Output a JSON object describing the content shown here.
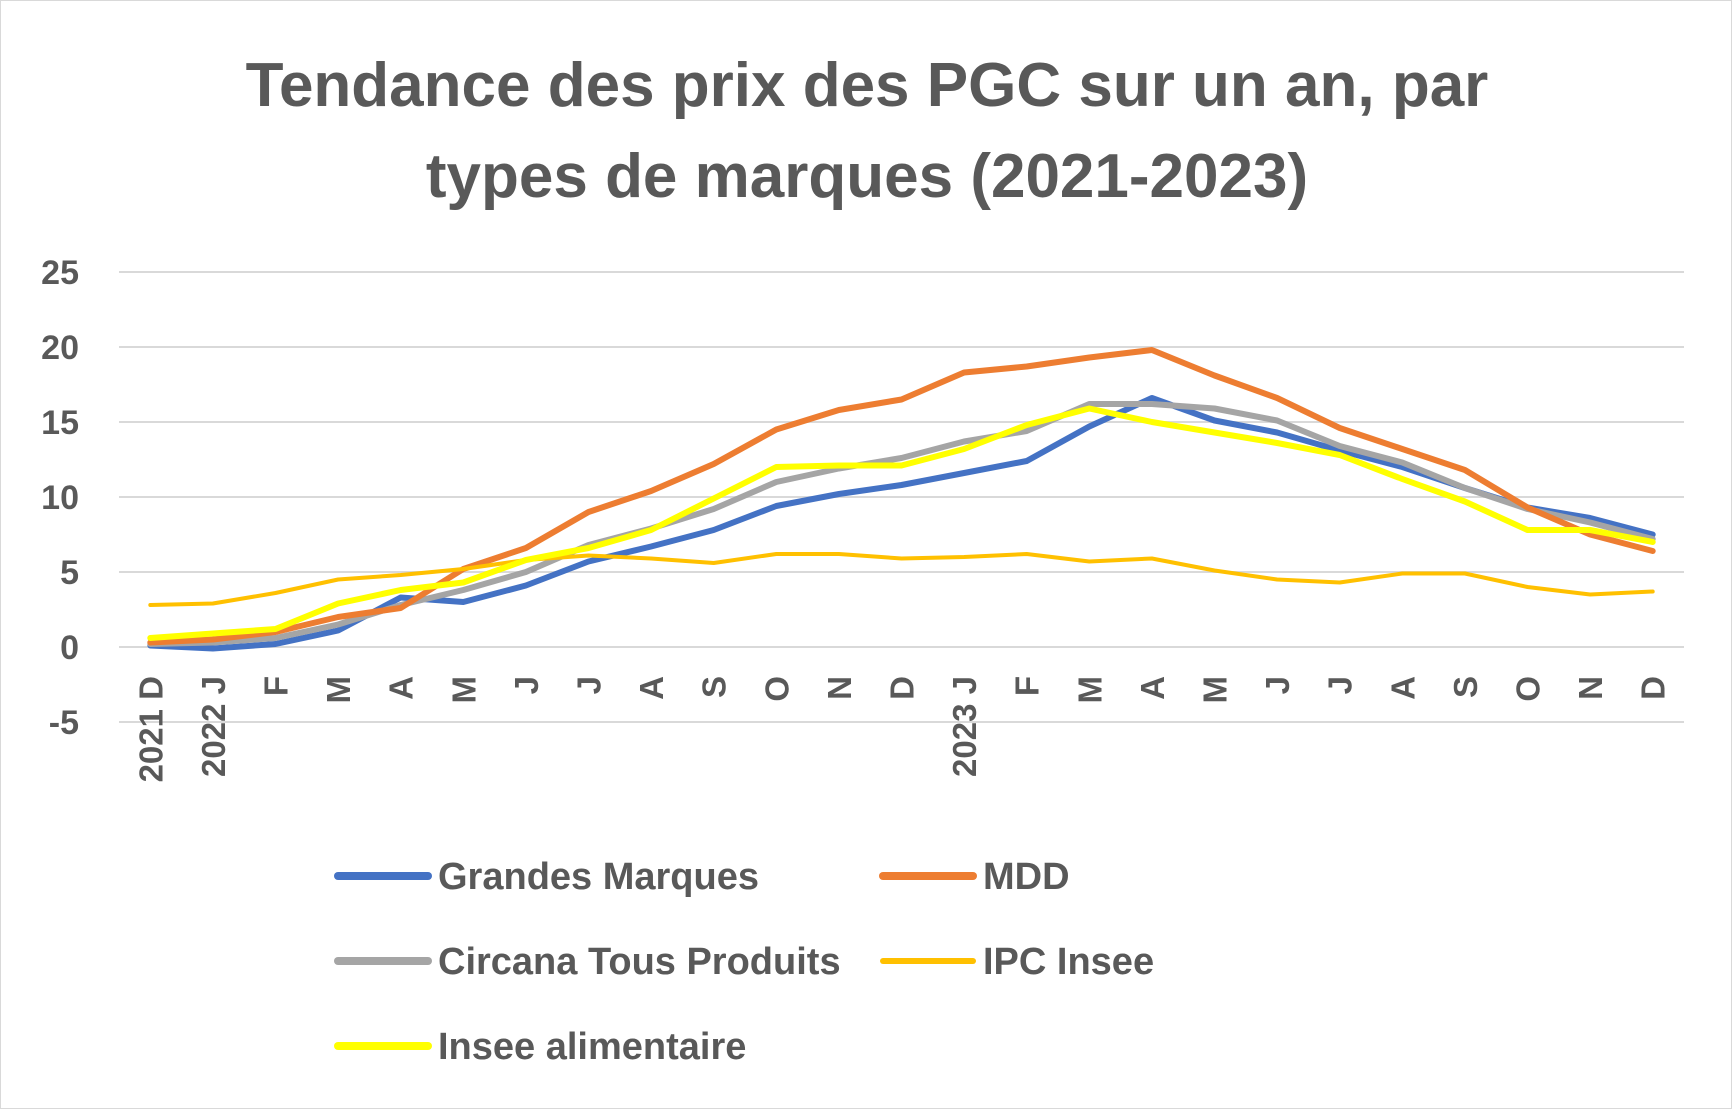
{
  "chart_data": {
    "type": "line",
    "title_lines": [
      "Tendance des prix des PGC sur un an, par",
      "types de marques (2021-2023)"
    ],
    "xlabel": "",
    "ylabel": "",
    "ylim": [
      -5,
      25
    ],
    "yticks": [
      25,
      20,
      15,
      10,
      5,
      0,
      -5
    ],
    "grid": true,
    "legend_position": "bottom",
    "categories": [
      "2021 D",
      "2022 J",
      "F",
      "M",
      "A",
      "M",
      "J",
      "J",
      "A",
      "S",
      "O",
      "N",
      "D",
      "2023 J",
      "F",
      "M",
      "A",
      "M",
      "J",
      "J",
      "A",
      "S",
      "O",
      "N",
      "D"
    ],
    "series": [
      {
        "name": "Grandes Marques",
        "color": "#4472C4",
        "values": [
          0.1,
          -0.1,
          0.2,
          1.1,
          3.3,
          3.0,
          4.1,
          5.7,
          6.7,
          7.8,
          9.4,
          10.2,
          10.8,
          11.6,
          12.4,
          14.7,
          16.6,
          15.1,
          14.3,
          13.1,
          12.0,
          10.6,
          9.3,
          8.6,
          7.5
        ]
      },
      {
        "name": "MDD",
        "color": "#ED7D31",
        "values": [
          0.3,
          0.5,
          1.0,
          2.0,
          2.6,
          5.2,
          6.6,
          9.0,
          10.4,
          12.2,
          14.5,
          15.8,
          16.5,
          18.3,
          18.7,
          19.3,
          19.8,
          18.1,
          16.6,
          14.6,
          13.2,
          11.8,
          9.3,
          7.5,
          6.4
        ]
      },
      {
        "name": "Circana Tous Produits",
        "color": "#A5A5A5",
        "values": [
          0.2,
          0.3,
          0.6,
          1.5,
          2.8,
          3.8,
          5.0,
          6.8,
          7.9,
          9.2,
          11.0,
          11.9,
          12.6,
          13.7,
          14.4,
          16.2,
          16.2,
          15.9,
          15.1,
          13.4,
          12.3,
          10.6,
          9.2,
          8.3,
          7.2
        ]
      },
      {
        "name": "IPC Insee",
        "color": "#FFC000",
        "values": [
          2.8,
          2.9,
          3.6,
          4.5,
          4.8,
          5.2,
          5.8,
          6.1,
          5.9,
          5.6,
          6.2,
          6.2,
          5.9,
          6.0,
          6.2,
          5.7,
          5.9,
          5.1,
          4.5,
          4.3,
          4.9,
          4.9,
          4.0,
          3.5,
          3.7
        ]
      },
      {
        "name": "Insee alimentaire",
        "color": "#FFFF00",
        "values": [
          0.6,
          0.9,
          1.2,
          2.9,
          3.8,
          4.3,
          5.8,
          6.6,
          7.8,
          9.9,
          12.0,
          12.1,
          12.1,
          13.2,
          14.8,
          15.9,
          15.0,
          14.3,
          13.6,
          12.8,
          11.2,
          9.7,
          7.8,
          7.8,
          7.0
        ]
      }
    ]
  }
}
